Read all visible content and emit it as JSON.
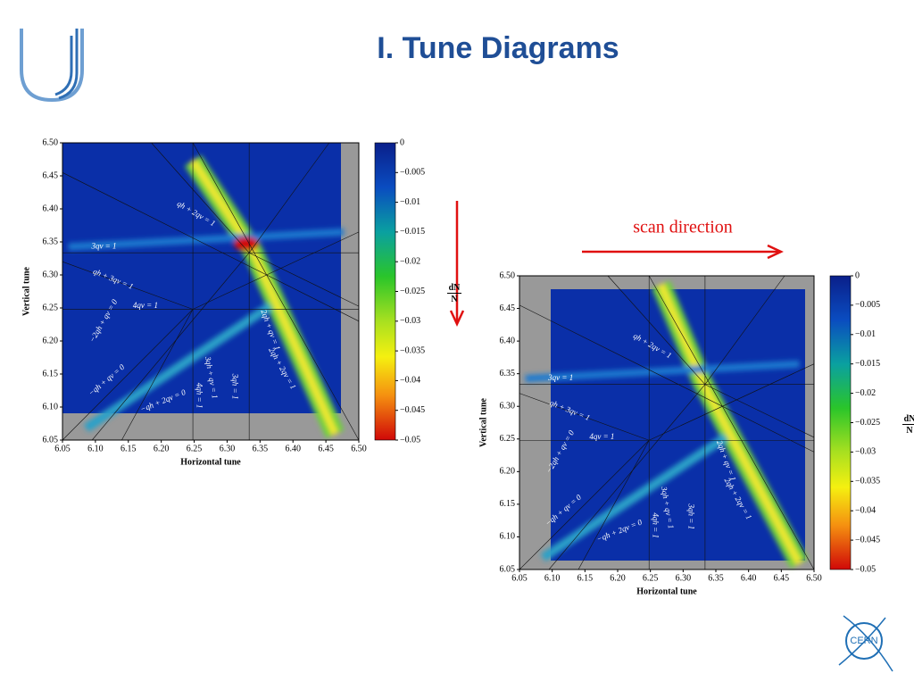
{
  "title": "I. Tune Diagrams",
  "annotation": "scan direction",
  "logo_text": "CERN",
  "chart_data": [
    {
      "type": "heatmap",
      "xlabel": "Horizontal tune",
      "ylabel": "Vertical tune",
      "xlim": [
        6.05,
        6.5
      ],
      "ylim": [
        6.05,
        6.5
      ],
      "xticks": [
        6.05,
        {
          "value": 6.1,
          "label": "6.10"
        },
        6.15,
        {
          "value": 6.2,
          "label": "6.20"
        },
        6.25,
        {
          "value": 6.3,
          "label": "6.30"
        },
        6.35,
        {
          "value": 6.4,
          "label": "6.40"
        },
        6.45,
        {
          "value": 6.5,
          "label": "6.50"
        }
      ],
      "yticks": [
        6.05,
        {
          "value": 6.1,
          "label": "6.10"
        },
        6.15,
        {
          "value": 6.2,
          "label": "6.20"
        },
        6.25,
        {
          "value": 6.3,
          "label": "6.30"
        },
        6.35,
        {
          "value": 6.4,
          "label": "6.40"
        },
        6.45,
        {
          "value": 6.5,
          "label": "6.50"
        }
      ],
      "colorbar": {
        "numerator": "dN",
        "denominator": "N",
        "lim": [
          -0.05,
          0
        ],
        "ticks": [
          0,
          {
            "value": -0.005,
            "label": "−0.005"
          },
          {
            "value": -0.01,
            "label": "−0.01"
          },
          {
            "value": -0.015,
            "label": "−0.015"
          },
          {
            "value": -0.02,
            "label": "−0.02"
          },
          {
            "value": -0.025,
            "label": "−0.025"
          },
          {
            "value": -0.03,
            "label": "−0.03"
          },
          {
            "value": -0.035,
            "label": "−0.035"
          },
          {
            "value": -0.04,
            "label": "−0.04"
          },
          {
            "value": -0.045,
            "label": "−0.045"
          },
          {
            "value": -0.05,
            "label": "−0.05"
          }
        ]
      },
      "annotations": [
        "qh + 2qv = 1",
        "3qv = 1",
        "qh + 3qv = 1",
        "4qv = 1",
        "−2qh + qv = 0",
        "−qh + qv = 0",
        "−qh + 2qv = 0",
        "4qh = 1",
        "3qh + qv = 1",
        "3qh = 1",
        "2qh + qv = 1",
        "2qh + 2qv = 1"
      ]
    },
    {
      "type": "heatmap",
      "xlabel": "Horizontal tune",
      "ylabel": "Vertical tune",
      "xlim": [
        6.05,
        6.5
      ],
      "ylim": [
        6.05,
        6.5
      ],
      "xticks": [
        6.05,
        {
          "value": 6.1,
          "label": "6.10"
        },
        6.15,
        {
          "value": 6.2,
          "label": "6.20"
        },
        6.25,
        {
          "value": 6.3,
          "label": "6.30"
        },
        6.35,
        {
          "value": 6.4,
          "label": "6.40"
        },
        6.45,
        {
          "value": 6.5,
          "label": "6.50"
        }
      ],
      "yticks": [
        6.05,
        {
          "value": 6.1,
          "label": "6.10"
        },
        6.15,
        {
          "value": 6.2,
          "label": "6.20"
        },
        6.25,
        {
          "value": 6.3,
          "label": "6.30"
        },
        6.35,
        {
          "value": 6.4,
          "label": "6.40"
        },
        6.45,
        {
          "value": 6.5,
          "label": "6.50"
        }
      ],
      "colorbar": {
        "numerator": "dN",
        "denominator": "N",
        "lim": [
          -0.05,
          0
        ],
        "ticks": [
          0,
          {
            "value": -0.005,
            "label": "−0.005"
          },
          {
            "value": -0.01,
            "label": "−0.01"
          },
          {
            "value": -0.015,
            "label": "−0.015"
          },
          {
            "value": -0.02,
            "label": "−0.02"
          },
          {
            "value": -0.025,
            "label": "−0.025"
          },
          {
            "value": -0.03,
            "label": "−0.03"
          },
          {
            "value": -0.035,
            "label": "−0.035"
          },
          {
            "value": -0.04,
            "label": "−0.04"
          },
          {
            "value": -0.045,
            "label": "−0.045"
          },
          {
            "value": -0.05,
            "label": "−0.05"
          }
        ]
      },
      "annotations": [
        "qh + 2qv = 1",
        "3qv = 1",
        "qh + 3qv = 1",
        "4qv = 1",
        "−2qh + qv = 0",
        "−qh + qv = 0",
        "−qh + 2qv = 0",
        "4qh = 1",
        "3qh + qv = 1",
        "3qh = 1",
        "2qh + qv = 1",
        "2qh + 2qv = 1"
      ]
    }
  ]
}
